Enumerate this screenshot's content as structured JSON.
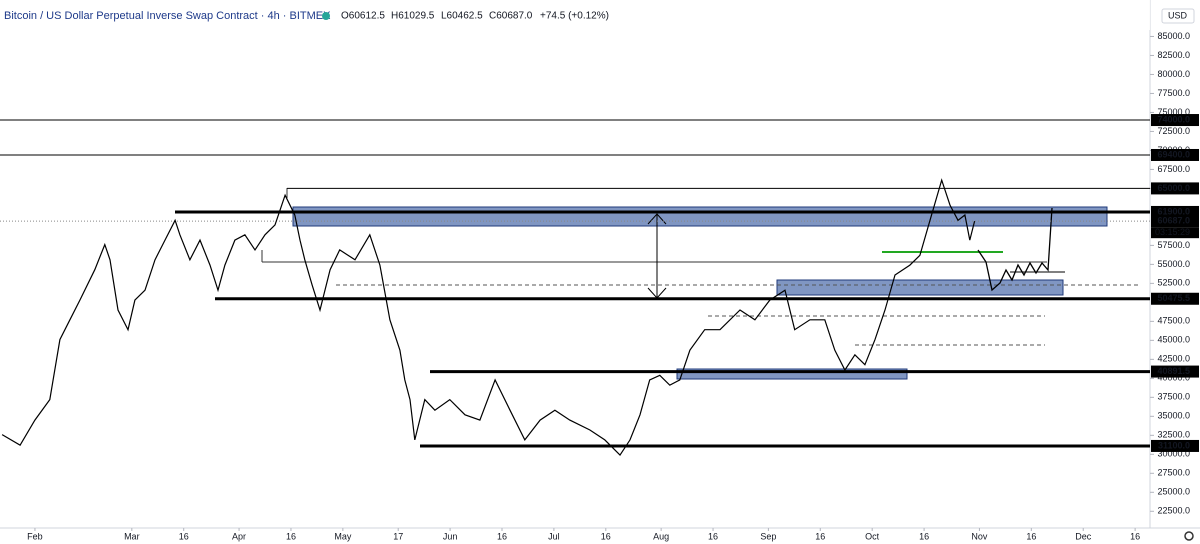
{
  "header": {
    "title": "Bitcoin / US Dollar Perpetual Inverse Swap Contract · 4h · BITMEX",
    "ohlc": [
      "O60612.5",
      "H61029.5",
      "L60462.5",
      "C60687.0",
      "+74.5 (+0.12%)"
    ],
    "currency": "USD",
    "countdown": "03:15:29"
  },
  "chart_data": {
    "type": "line",
    "x": [
      22.5,
      27.7,
      32,
      36.3,
      39.2,
      42.1,
      45,
      49.3,
      52.2,
      53.7,
      56,
      58.9,
      60.9,
      63.8,
      66.7,
      69.6,
      72.5,
      73.9,
      76.8,
      79.7,
      82.6,
      84.9,
      86.9,
      89.8,
      92.7,
      95.6,
      98.5,
      101.4,
      104.3,
      107.1,
      108.6,
      110,
      112.1,
      114.4,
      117.3,
      120.1,
      124.5,
      128.8,
      131.7,
      134.6,
      137.5,
      138.9,
      140.4,
      141.8,
      144.7,
      147.6,
      151.9,
      156.3,
      160.6,
      165,
      169.3,
      173.6,
      178,
      182.3,
      186.6,
      192.4,
      196.7,
      201.1,
      204,
      206.9,
      209.7,
      212.6,
      215.5,
      218.4,
      221.3,
      225.6,
      230,
      235.8,
      240.1,
      244.4,
      248.8,
      251.6,
      256,
      260.3,
      263.2,
      266.1,
      269,
      271.9,
      274.8,
      277.7,
      280.6,
      284.9,
      287.8,
      290.7,
      294.1,
      296.5,
      298.8,
      300.8,
      302.2,
      303.6
    ],
    "series": [
      {
        "name": "BTCUSD",
        "color": "#000000",
        "values": [
          32600,
          31200,
          34500,
          37200,
          45100,
          47700,
          50300,
          54300,
          57600,
          55600,
          49000,
          46400,
          50300,
          51600,
          55600,
          58200,
          60800,
          58900,
          55600,
          58200,
          54900,
          51600,
          54900,
          58200,
          58900,
          56900,
          58900,
          60200,
          64100,
          61500,
          58200,
          55600,
          52300,
          49000,
          54300,
          56900,
          55600,
          58900,
          54900,
          47700,
          43700,
          39800,
          37200,
          31900,
          37200,
          35800,
          37200,
          35200,
          34500,
          39800,
          35800,
          31900,
          34500,
          35800,
          34500,
          33200,
          31900,
          29900,
          31900,
          35200,
          39800,
          40400,
          39100,
          39800,
          43700,
          46400,
          46400,
          49000,
          47700,
          50300,
          51600,
          46400,
          47700,
          47700,
          43700,
          41100,
          43100,
          41800,
          45100,
          49000,
          53600,
          54900,
          56200,
          60800,
          66100,
          62800,
          60800,
          61500,
          58200,
          60700
        ]
      }
    ],
    "xlim": [
      21.9,
      354.3
    ],
    "xticks": [
      {
        "value": 32,
        "label": "Feb"
      },
      {
        "value": 60,
        "label": "Mar"
      },
      {
        "value": 75,
        "label": "16"
      },
      {
        "value": 91,
        "label": "Apr"
      },
      {
        "value": 106,
        "label": "16"
      },
      {
        "value": 121,
        "label": "May"
      },
      {
        "value": 137,
        "label": "17"
      },
      {
        "value": 152,
        "label": "Jun"
      },
      {
        "value": 167,
        "label": "16"
      },
      {
        "value": 182,
        "label": "Jul"
      },
      {
        "value": 197,
        "label": "16"
      },
      {
        "value": 213,
        "label": "Aug"
      },
      {
        "value": 228,
        "label": "16"
      },
      {
        "value": 244,
        "label": "Sep"
      },
      {
        "value": 259,
        "label": "16"
      },
      {
        "value": 274,
        "label": "Oct"
      },
      {
        "value": 289,
        "label": "16"
      },
      {
        "value": 305,
        "label": "Nov"
      },
      {
        "value": 320,
        "label": "16"
      },
      {
        "value": 335,
        "label": "Dec"
      },
      {
        "value": 350,
        "label": "16"
      }
    ],
    "ylim": [
      20300,
      89800
    ],
    "yticks": [
      {
        "value": 85000,
        "label": "85000.0"
      },
      {
        "value": 82500,
        "label": "82500.0"
      },
      {
        "value": 80000,
        "label": "80000.0"
      },
      {
        "value": 77500,
        "label": "77500.0"
      },
      {
        "value": 75000,
        "label": "75000.0"
      },
      {
        "value": 72500,
        "label": "72500.0"
      },
      {
        "value": 70000,
        "label": "70000.0"
      },
      {
        "value": 67500,
        "label": "67500.0"
      },
      {
        "value": 65000,
        "label": "65000.0"
      },
      {
        "value": 57500,
        "label": "57500.0"
      },
      {
        "value": 55000,
        "label": "55000.0"
      },
      {
        "value": 52500,
        "label": "52500.0"
      },
      {
        "value": 47500,
        "label": "47500.0"
      },
      {
        "value": 45000,
        "label": "45000.0"
      },
      {
        "value": 42500,
        "label": "42500.0"
      },
      {
        "value": 40000,
        "label": "40000.0"
      },
      {
        "value": 37500,
        "label": "37500.0"
      },
      {
        "value": 35000,
        "label": "35000.0"
      },
      {
        "value": 32500,
        "label": "32500.0"
      },
      {
        "value": 30000,
        "label": "30000.0"
      },
      {
        "value": 27500,
        "label": "27500.0"
      },
      {
        "value": 25000,
        "label": "25000.0"
      },
      {
        "value": 22500,
        "label": "22500.0"
      }
    ],
    "hlines": [
      {
        "value": 74000,
        "label": "74000.0",
        "style": "thin"
      },
      {
        "value": 69400,
        "label": "69400.0",
        "style": "thin"
      },
      {
        "value": 65000,
        "label": "65000.0",
        "style": "thin"
      },
      {
        "value": 61900,
        "label": "61900.0",
        "style": "thick"
      },
      {
        "value": 60687,
        "label": "60687.0",
        "style": "dotted"
      },
      {
        "value": 50475.5,
        "label": "50475.5",
        "style": "thick"
      },
      {
        "value": 40891.5,
        "label": "40891.5",
        "style": "thick"
      },
      {
        "value": 31100,
        "label": "31100.0",
        "style": "thick"
      }
    ]
  }
}
